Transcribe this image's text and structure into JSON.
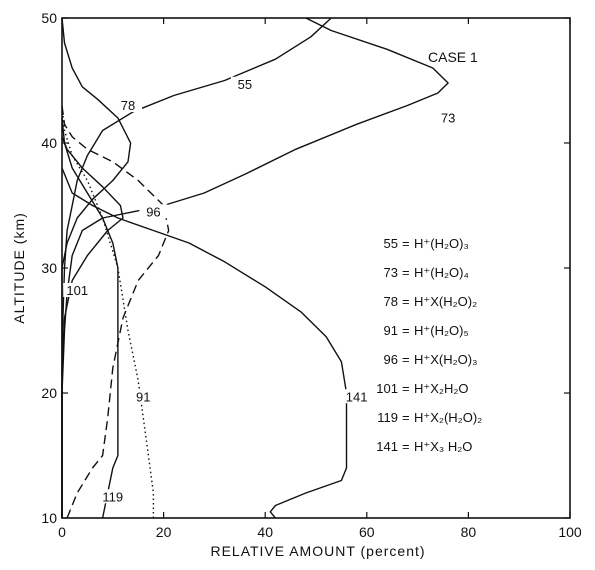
{
  "chart_data": {
    "type": "line",
    "title": "",
    "annotation": "CASE 1",
    "xlabel": "RELATIVE AMOUNT (percent)",
    "ylabel": "ALTITUDE (km)",
    "xlim": [
      0,
      100
    ],
    "ylim": [
      10,
      50
    ],
    "x_ticks": [
      0,
      20,
      40,
      60,
      80,
      100
    ],
    "y_ticks": [
      10,
      20,
      30,
      40,
      50
    ],
    "grid": false,
    "legend": [
      {
        "key": "55",
        "ion": "H⁺(H₂O)₃"
      },
      {
        "key": "73",
        "ion": "H⁺(H₂O)₄"
      },
      {
        "key": "78",
        "ion": "H⁺X(H₂O)₂"
      },
      {
        "key": "91",
        "ion": "H⁺(H₂O)₅"
      },
      {
        "key": "96",
        "ion": "H⁺X(H₂O)₃"
      },
      {
        "key": "101",
        "ion": "H⁺X₂H₂O"
      },
      {
        "key": "119",
        "ion": "H⁺X₂(H₂O)₂"
      },
      {
        "key": "141",
        "ion": "H⁺X₃ H₂O"
      }
    ],
    "series": [
      {
        "name": "55",
        "style": "solid",
        "label_at": [
          36,
          44.5
        ],
        "points": [
          [
            0,
            10
          ],
          [
            0,
            15
          ],
          [
            0,
            20
          ],
          [
            0.1,
            25
          ],
          [
            0.5,
            30
          ],
          [
            1,
            33
          ],
          [
            2,
            35
          ],
          [
            3,
            37
          ],
          [
            5,
            39
          ],
          [
            8,
            41
          ],
          [
            14,
            42.5
          ],
          [
            22,
            43.8
          ],
          [
            32,
            45
          ],
          [
            42,
            46.7
          ],
          [
            49,
            48.5
          ],
          [
            53,
            50
          ]
        ]
      },
      {
        "name": "73",
        "style": "solid",
        "label_at": [
          76,
          41.8
        ],
        "points": [
          [
            0,
            10
          ],
          [
            0,
            20
          ],
          [
            0.5,
            25
          ],
          [
            1,
            28
          ],
          [
            2,
            31
          ],
          [
            4,
            33
          ],
          [
            8,
            34
          ],
          [
            14,
            34.5
          ],
          [
            20,
            35
          ],
          [
            28,
            36
          ],
          [
            36,
            37.5
          ],
          [
            46,
            39.5
          ],
          [
            58,
            41.5
          ],
          [
            68,
            43
          ],
          [
            74,
            44
          ],
          [
            76,
            44.8
          ],
          [
            73,
            46
          ],
          [
            64,
            47.5
          ],
          [
            53,
            49
          ],
          [
            48,
            50
          ]
        ]
      },
      {
        "name": "78",
        "style": "solid",
        "label_at": [
          13,
          42.8
        ],
        "points": [
          [
            0,
            10
          ],
          [
            0,
            15
          ],
          [
            0,
            20
          ],
          [
            0,
            25
          ],
          [
            0,
            30
          ],
          [
            1,
            32
          ],
          [
            3,
            34
          ],
          [
            6,
            35.5
          ],
          [
            10,
            37
          ],
          [
            13,
            38.5
          ],
          [
            13.5,
            40
          ],
          [
            11,
            42
          ],
          [
            7,
            43.5
          ],
          [
            4,
            44.5
          ],
          [
            2,
            46
          ],
          [
            0.5,
            48
          ],
          [
            0,
            50
          ]
        ]
      },
      {
        "name": "91",
        "style": "dotted",
        "label_at": [
          16,
          19.5
        ],
        "points": [
          [
            18,
            10
          ],
          [
            18,
            12
          ],
          [
            17,
            15
          ],
          [
            16,
            18
          ],
          [
            15,
            21
          ],
          [
            13,
            25
          ],
          [
            11,
            30
          ],
          [
            8,
            34
          ],
          [
            5,
            37
          ],
          [
            2,
            39
          ],
          [
            0.5,
            41
          ],
          [
            0,
            43
          ]
        ]
      },
      {
        "name": "96",
        "style": "dashed",
        "label_at": [
          18,
          34.3
        ],
        "points": [
          [
            1,
            10
          ],
          [
            3,
            12
          ],
          [
            6,
            14
          ],
          [
            8,
            15
          ],
          [
            9,
            18
          ],
          [
            10,
            22
          ],
          [
            12,
            26
          ],
          [
            15,
            29
          ],
          [
            19,
            31
          ],
          [
            21,
            33
          ],
          [
            20,
            35
          ],
          [
            15,
            37
          ],
          [
            10,
            38.5
          ],
          [
            5,
            39.5
          ],
          [
            2,
            40.5
          ],
          [
            0.5,
            41.5
          ],
          [
            0,
            43
          ]
        ]
      },
      {
        "name": "101",
        "style": "solid",
        "label_at": [
          3,
          28
        ],
        "points": [
          [
            0,
            10
          ],
          [
            0,
            15
          ],
          [
            0,
            20
          ],
          [
            0,
            22
          ],
          [
            0.5,
            26
          ],
          [
            2,
            29
          ],
          [
            5,
            31
          ],
          [
            9,
            33
          ],
          [
            12,
            34
          ],
          [
            11.5,
            35
          ],
          [
            8,
            36.5
          ],
          [
            4,
            38
          ],
          [
            1,
            39.5
          ],
          [
            0,
            40.5
          ]
        ]
      },
      {
        "name": "119",
        "style": "solid",
        "label_at": [
          10,
          11.5
        ],
        "points": [
          [
            8,
            10
          ],
          [
            9,
            12
          ],
          [
            10,
            14
          ],
          [
            11,
            15
          ],
          [
            11,
            18
          ],
          [
            11,
            22
          ],
          [
            11,
            26
          ],
          [
            11,
            30
          ],
          [
            10,
            32
          ],
          [
            8,
            34
          ],
          [
            5,
            36
          ],
          [
            2,
            38
          ],
          [
            0.5,
            40
          ],
          [
            0,
            42
          ]
        ]
      },
      {
        "name": "141",
        "style": "solid",
        "label_at": [
          58,
          19.5
        ],
        "points": [
          [
            0,
            38
          ],
          [
            2,
            36
          ],
          [
            6,
            35
          ],
          [
            11,
            34
          ],
          [
            18,
            33
          ],
          [
            25,
            32
          ],
          [
            32,
            30.5
          ],
          [
            40,
            28.5
          ],
          [
            47,
            26.5
          ],
          [
            52,
            24.5
          ],
          [
            55,
            22.5
          ],
          [
            56,
            20
          ],
          [
            56,
            17
          ],
          [
            56,
            14
          ],
          [
            55,
            13
          ],
          [
            48,
            12
          ],
          [
            42,
            11
          ],
          [
            41,
            10.5
          ],
          [
            42,
            10
          ]
        ]
      }
    ]
  }
}
